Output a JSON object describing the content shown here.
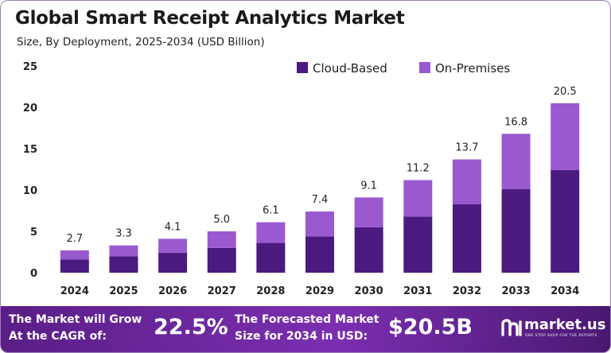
{
  "title": "Global Smart Receipt Analytics Market",
  "subtitle": "Size, By Deployment, 2025-2034 (USD Billion)",
  "footer": {
    "left_line1": "The Market will Grow",
    "left_line2": "At the CAGR of:",
    "cagr": "22.5%",
    "mid_line1": "The Forecasted Market",
    "mid_line2": "Size for 2034 in USD:",
    "value": "$20.5B"
  },
  "brand": {
    "name": "market.us",
    "tagline": "ONE STOP SHOP FOR THE REPORTS",
    "logo_icon": "market-us-logo-icon"
  },
  "colors": {
    "cloud": "#4b1a7f",
    "onprem": "#9b59d0",
    "footer_bg": "#6a2a9c"
  },
  "chart_data": {
    "type": "bar",
    "stacked": true,
    "categories": [
      "2024",
      "2025",
      "2026",
      "2027",
      "2028",
      "2029",
      "2030",
      "2031",
      "2032",
      "2033",
      "2034"
    ],
    "series": [
      {
        "name": "Cloud-Based",
        "values": [
          1.6,
          2.0,
          2.4,
          3.0,
          3.6,
          4.4,
          5.5,
          6.8,
          8.3,
          10.1,
          12.4
        ]
      },
      {
        "name": "On-Premises",
        "values": [
          1.1,
          1.3,
          1.7,
          2.0,
          2.5,
          3.0,
          3.6,
          4.4,
          5.4,
          6.7,
          8.1
        ]
      }
    ],
    "totals": [
      "2.7",
      "3.3",
      "4.1",
      "5.0",
      "6.1",
      "7.4",
      "9.1",
      "11.2",
      "13.7",
      "16.8",
      "20.5"
    ],
    "ylim": [
      0,
      25
    ],
    "yticks": [
      "0",
      "5",
      "10",
      "15",
      "20",
      "25"
    ],
    "xlabel": "",
    "ylabel": "",
    "grid": false,
    "legend_position": "top-right"
  }
}
